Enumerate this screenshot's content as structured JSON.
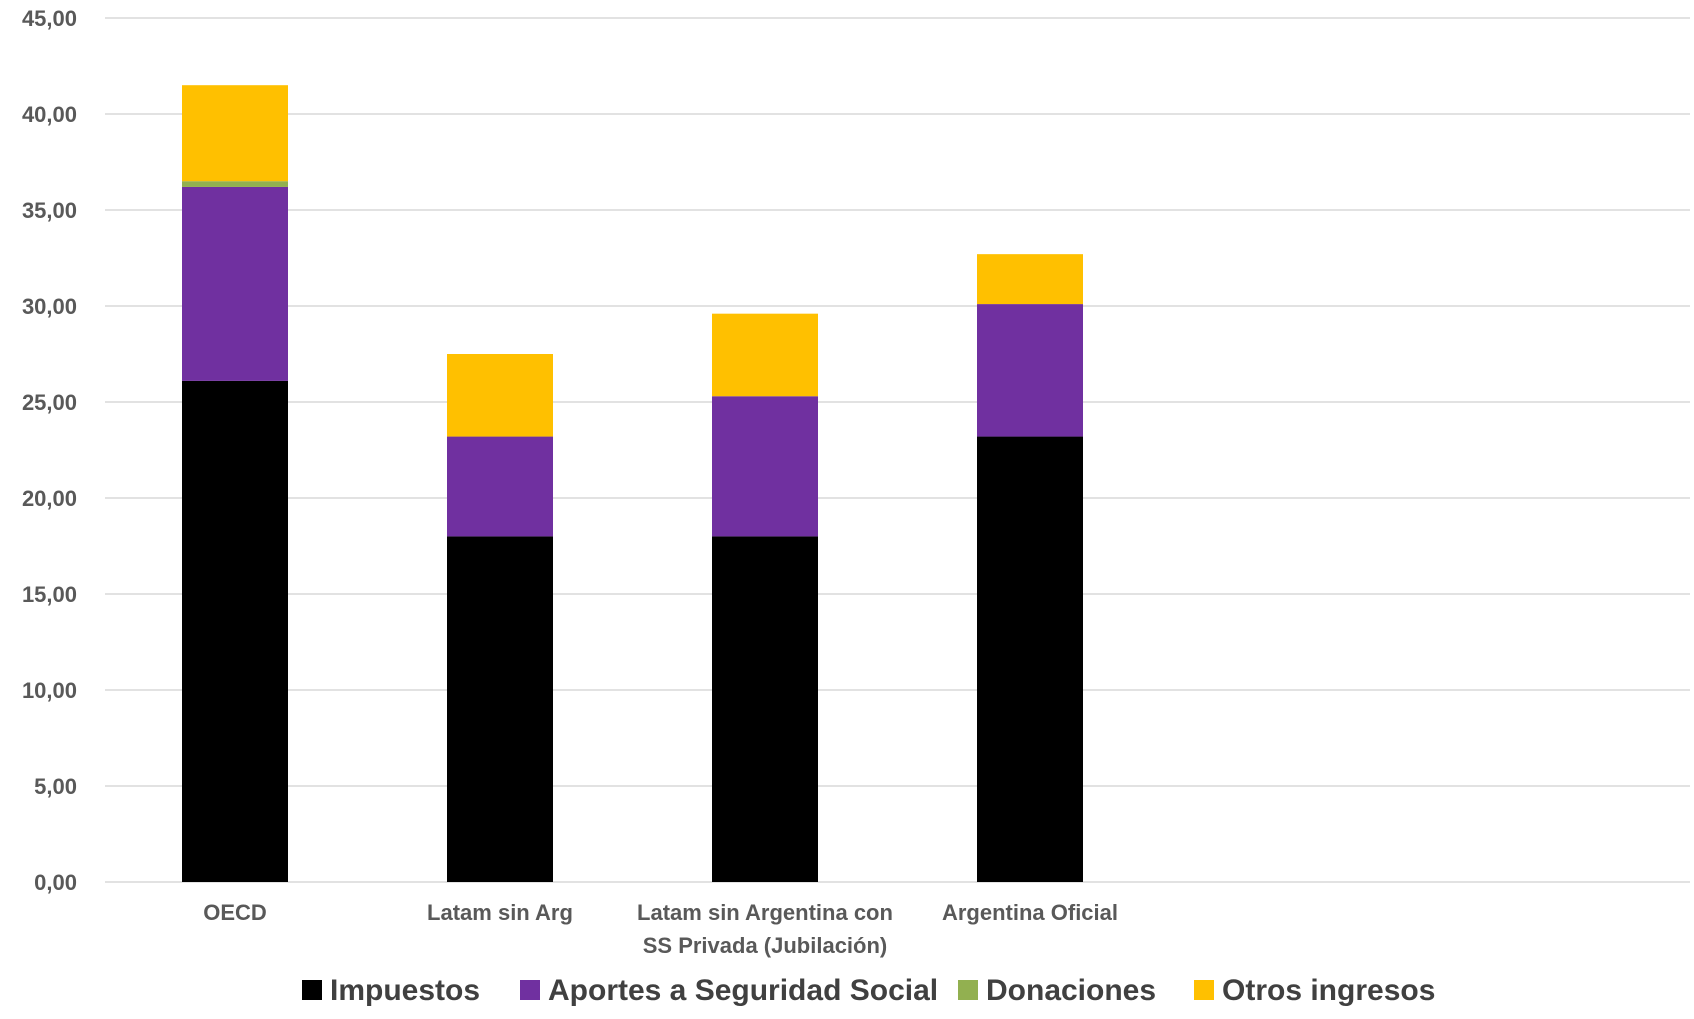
{
  "chart_data": {
    "type": "bar",
    "stacked": true,
    "categories": [
      [
        "OECD"
      ],
      [
        "Latam sin Arg"
      ],
      [
        "Latam sin Argentina con",
        "SS Privada (Jubilación)"
      ],
      [
        "Argentina Oficial"
      ]
    ],
    "series": [
      {
        "name": "Impuestos",
        "color": "#000000",
        "values": [
          26.1,
          18.0,
          18.0,
          23.2
        ]
      },
      {
        "name": "Aportes a Seguridad Social",
        "color": "#7030A0",
        "values": [
          10.1,
          5.2,
          7.3,
          6.9
        ]
      },
      {
        "name": "Donaciones",
        "color": "#92B050",
        "values": [
          0.3,
          0.0,
          0.0,
          0.0
        ]
      },
      {
        "name": "Otros ingresos",
        "color": "#FFC000",
        "values": [
          5.0,
          4.3,
          4.3,
          2.6
        ]
      }
    ],
    "ylim": [
      0,
      45
    ],
    "yticks": [
      "0,00",
      "5,00",
      "10,00",
      "15,00",
      "20,00",
      "25,00",
      "30,00",
      "35,00",
      "40,00",
      "45,00"
    ],
    "grid": true,
    "legend_position": "bottom",
    "title": "",
    "xlabel": "",
    "ylabel": ""
  }
}
